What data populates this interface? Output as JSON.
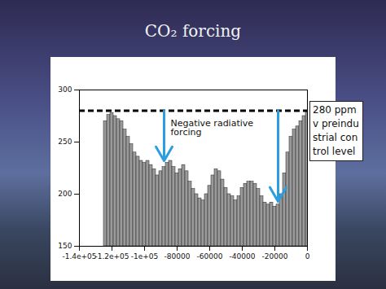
{
  "chart_data": {
    "type": "bar",
    "title": "CO₂ forcing",
    "x": [
      -124000,
      -122000,
      -120000,
      -118000,
      -116000,
      -114000,
      -112000,
      -110000,
      -108000,
      -106000,
      -104000,
      -102000,
      -100000,
      -98000,
      -96000,
      -94000,
      -92000,
      -90000,
      -88000,
      -86000,
      -84000,
      -82000,
      -80000,
      -78000,
      -76000,
      -74000,
      -72000,
      -70000,
      -68000,
      -66000,
      -64000,
      -62000,
      -60000,
      -58000,
      -56000,
      -54000,
      -52000,
      -50000,
      -48000,
      -46000,
      -44000,
      -42000,
      -40000,
      -38000,
      -36000,
      -34000,
      -32000,
      -30000,
      -28000,
      -26000,
      -24000,
      -22000,
      -20000,
      -18000,
      -16000,
      -14000,
      -12000,
      -10000,
      -8000,
      -6000,
      -4000,
      -2000,
      0
    ],
    "values": [
      270,
      276,
      278,
      275,
      272,
      270,
      262,
      255,
      248,
      240,
      236,
      232,
      230,
      232,
      228,
      224,
      218,
      222,
      226,
      230,
      232,
      226,
      220,
      224,
      228,
      222,
      212,
      205,
      200,
      196,
      194,
      200,
      208,
      218,
      224,
      222,
      214,
      206,
      200,
      198,
      194,
      198,
      206,
      210,
      212,
      212,
      210,
      205,
      198,
      192,
      190,
      192,
      188,
      190,
      200,
      220,
      240,
      255,
      262,
      265,
      270,
      275,
      280
    ],
    "color": "#9a9a9a",
    "xlim": [
      -140000,
      0
    ],
    "ylim": [
      150,
      300
    ],
    "xticks": [
      {
        "value": -140000,
        "label": "-1.4e+05"
      },
      {
        "value": -120000,
        "label": "-1.2e+05"
      },
      {
        "value": -100000,
        "label": "-1e+05"
      },
      -80000,
      -60000,
      -40000,
      -20000,
      0
    ],
    "yticks": [
      150,
      200,
      250,
      300
    ],
    "reference_line": 280,
    "reference_label": "280 ppmv preindustrial control level",
    "annotation": {
      "text": "Negative radiative\nforcing",
      "x": -84000,
      "y": 271
    },
    "arrows": [
      {
        "x": -88000,
        "from": 280,
        "to": 232
      },
      {
        "x": -18000,
        "from": 280,
        "to": 193
      }
    ]
  }
}
